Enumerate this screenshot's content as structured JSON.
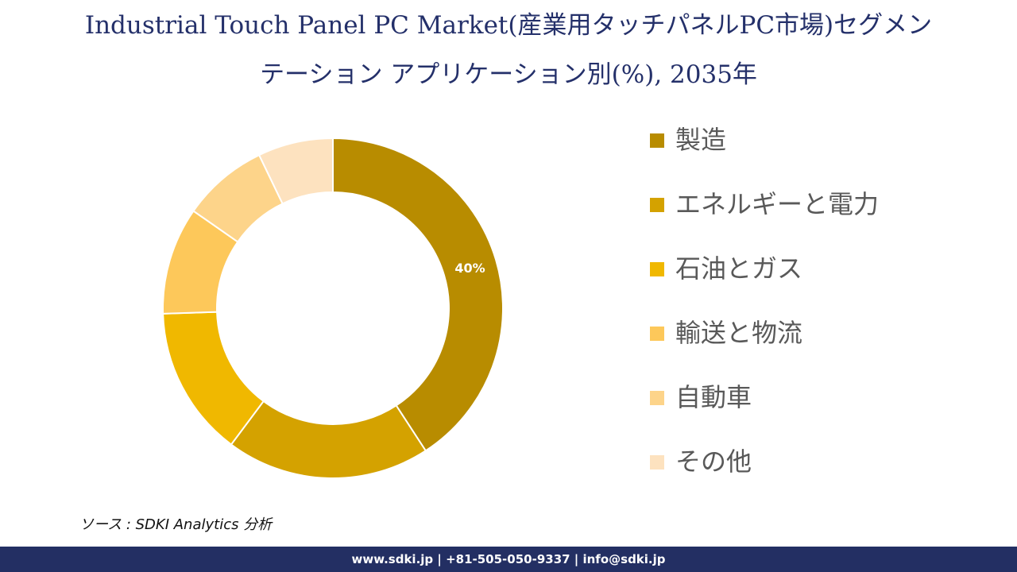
{
  "title": {
    "line1": "Industrial Touch Panel PC Market(産業用タッチパネルPC市場)セグメン",
    "line2": "テーション アプリケーション別(%), 2035年"
  },
  "chart_data": {
    "type": "pie",
    "donut": true,
    "categories": [
      "製造",
      "エネルギーと電力",
      "石油とガス",
      "輸送と物流",
      "自動車",
      "その他"
    ],
    "values": [
      40,
      19,
      14,
      10,
      8,
      7
    ],
    "colors": [
      "#b88c00",
      "#d4a200",
      "#f0b800",
      "#fdc85a",
      "#fdd48a",
      "#fde2bf"
    ],
    "data_labels": [
      "40%",
      "",
      "",
      "",
      "",
      ""
    ],
    "legend_position": "right"
  },
  "source": "ソース : SDKI Analytics 分析",
  "footer": "www.sdki.jp | +81-505-050-9337 | info@sdki.jp"
}
